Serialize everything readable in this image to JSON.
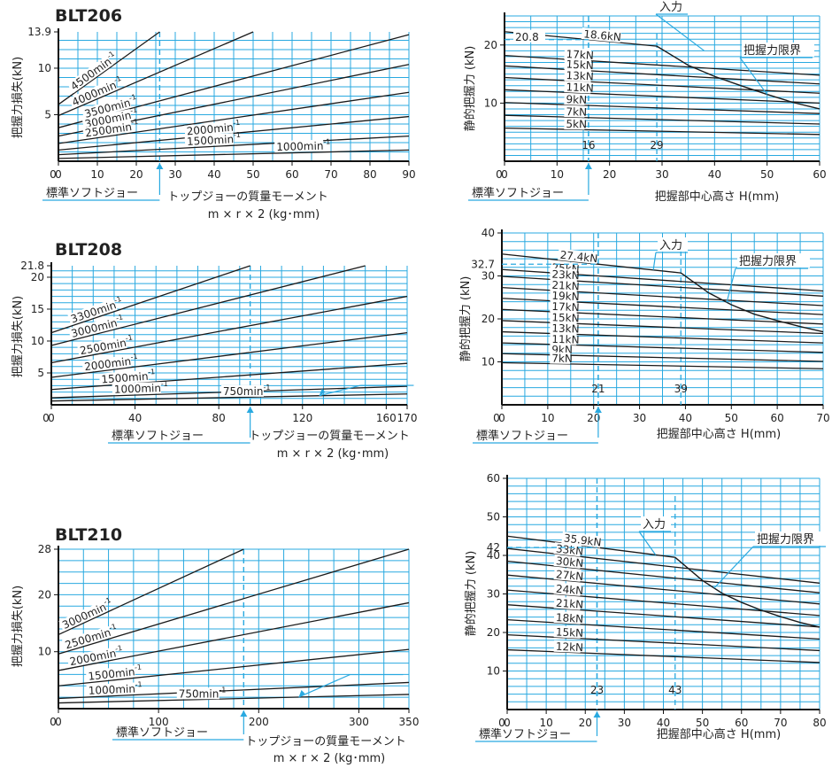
{
  "colors": {
    "grid": "#29a9e0",
    "curve": "#1a1a1a",
    "text": "#222222",
    "background": "#ffffff"
  },
  "chart_data": [
    {
      "type": "line",
      "id": "BLT206-loss",
      "title": "BLT206",
      "xlabel": "トップジョーの質量モーメント",
      "xlabel2": "m × r × 2 (kg･mm)",
      "ylabel": "把握力損失(kN)",
      "xlim": [
        0,
        90
      ],
      "ylim": [
        0,
        13.9
      ],
      "xticks": [
        0,
        10,
        20,
        30,
        40,
        50,
        60,
        70,
        80,
        90
      ],
      "yticks": [
        5,
        10,
        13.9
      ],
      "marker_x": 26,
      "marker_label": "標準ソフトジョー",
      "series": [
        {
          "name": "4500min-1",
          "x": [
            0,
            26
          ],
          "y": [
            6.1,
            13.9
          ]
        },
        {
          "name": "4000min-1",
          "x": [
            0,
            50
          ],
          "y": [
            4.9,
            13.9
          ]
        },
        {
          "name": "3500min-1",
          "x": [
            0,
            90
          ],
          "y": [
            3.6,
            13.6
          ]
        },
        {
          "name": "3000min-1",
          "x": [
            0,
            90
          ],
          "y": [
            2.7,
            10.4
          ]
        },
        {
          "name": "2500min-1",
          "x": [
            0,
            90
          ],
          "y": [
            1.9,
            7.4
          ]
        },
        {
          "name": "2000min-1",
          "x": [
            0,
            90
          ],
          "y": [
            1.2,
            4.8
          ]
        },
        {
          "name": "1500min-1",
          "x": [
            0,
            90
          ],
          "y": [
            0.7,
            2.7
          ]
        },
        {
          "name": "1000min-1",
          "x": [
            0,
            90
          ],
          "y": [
            0.3,
            1.2
          ]
        }
      ]
    },
    {
      "type": "line",
      "id": "BLT206-grip",
      "xlabel": "把握部中心高さ H(mm)",
      "ylabel": "静的把握力 (kN)",
      "xlim": [
        0,
        60
      ],
      "ylim": [
        0,
        25
      ],
      "xticks": [
        0,
        10,
        20,
        30,
        40,
        50,
        60
      ],
      "yticks": [
        10,
        20
      ],
      "marker_x": 16,
      "marker_label": "標準ソフトジョー",
      "refs": [
        {
          "x": 16,
          "label": "16"
        },
        {
          "x": 29,
          "label": "29"
        }
      ],
      "ref_value": "20.8",
      "input_label": "入力",
      "limit_label": "把握力限界",
      "limit_curve": {
        "x": [
          29,
          35,
          40,
          45,
          50,
          55,
          60
        ],
        "y": [
          19.8,
          16.5,
          14.6,
          13.0,
          11.5,
          10.1,
          9.0
        ]
      },
      "series": [
        {
          "name": "18.6kN",
          "x": [
            0,
            29
          ],
          "y": [
            22.3,
            19.8
          ]
        },
        {
          "name": "17kN",
          "x": [
            0,
            60
          ],
          "y": [
            18.2,
            14.8
          ]
        },
        {
          "name": "15kN",
          "x": [
            0,
            60
          ],
          "y": [
            16.4,
            13.3
          ]
        },
        {
          "name": "13kN",
          "x": [
            0,
            60
          ],
          "y": [
            14.4,
            11.7
          ]
        },
        {
          "name": "11kN",
          "x": [
            0,
            60
          ],
          "y": [
            12.3,
            10.0
          ]
        },
        {
          "name": "9kN",
          "x": [
            0,
            60
          ],
          "y": [
            10.1,
            8.2
          ]
        },
        {
          "name": "7kN",
          "x": [
            0,
            60
          ],
          "y": [
            7.9,
            6.4
          ]
        },
        {
          "name": "5kN",
          "x": [
            0,
            60
          ],
          "y": [
            5.7,
            4.6
          ]
        }
      ]
    },
    {
      "type": "line",
      "id": "BLT208-loss",
      "title": "BLT208",
      "xlabel": "トップジョーの質量モーメント",
      "xlabel2": "m × r × 2 (kg･mm)",
      "ylabel": "把握力損失(kN)",
      "xlim": [
        0,
        170
      ],
      "ylim": [
        0,
        21.8
      ],
      "xticks": [
        0,
        40,
        80,
        120,
        160,
        170
      ],
      "yticks": [
        5,
        10,
        15,
        20,
        21.8
      ],
      "marker_x": 95,
      "marker_label": "標準ソフトジョー",
      "series": [
        {
          "name": "3300min-1",
          "x": [
            0,
            95
          ],
          "y": [
            11.3,
            21.8
          ]
        },
        {
          "name": "3000min-1",
          "x": [
            0,
            150
          ],
          "y": [
            9.3,
            21.8
          ]
        },
        {
          "name": "2500min-1",
          "x": [
            0,
            170
          ],
          "y": [
            6.6,
            17.0
          ]
        },
        {
          "name": "2000min-1",
          "x": [
            0,
            170
          ],
          "y": [
            4.3,
            11.3
          ]
        },
        {
          "name": "1500min-1",
          "x": [
            0,
            170
          ],
          "y": [
            2.4,
            6.5
          ]
        },
        {
          "name": "1000min-1",
          "x": [
            0,
            170
          ],
          "y": [
            1.1,
            2.9
          ]
        },
        {
          "name": "750min-1",
          "x": [
            0,
            170
          ],
          "y": [
            0.6,
            1.7
          ]
        }
      ]
    },
    {
      "type": "line",
      "id": "BLT208-grip",
      "xlabel": "把握部中心高さ H(mm)",
      "ylabel": "静的把握力 (kN)",
      "xlim": [
        0,
        70
      ],
      "ylim": [
        0,
        40
      ],
      "xticks": [
        0,
        10,
        20,
        30,
        40,
        50,
        60,
        70
      ],
      "yticks": [
        10,
        20,
        30,
        40
      ],
      "marker_x": 21,
      "marker_label": "標準ソフトジョー",
      "refs": [
        {
          "x": 21,
          "label": "21"
        },
        {
          "x": 39,
          "label": "39"
        }
      ],
      "ref_value": "32.7",
      "input_label": "入力",
      "limit_label": "把握力限界",
      "limit_curve": {
        "x": [
          39,
          45,
          50,
          55,
          60,
          65,
          70
        ],
        "y": [
          30.7,
          26.1,
          23.3,
          21.1,
          19.6,
          18.2,
          17.0
        ]
      },
      "series": [
        {
          "name": "27.4kN",
          "x": [
            0,
            39
          ],
          "y": [
            35.1,
            30.7
          ]
        },
        {
          "name": "25kN",
          "x": [
            0,
            70
          ],
          "y": [
            31.5,
            26.5
          ]
        },
        {
          "name": "23kN",
          "x": [
            0,
            70
          ],
          "y": [
            29.9,
            25.3
          ]
        },
        {
          "name": "21kN",
          "x": [
            0,
            70
          ],
          "y": [
            27.3,
            23.1
          ]
        },
        {
          "name": "19kN",
          "x": [
            0,
            70
          ],
          "y": [
            24.8,
            21.0
          ]
        },
        {
          "name": "17kN",
          "x": [
            0,
            70
          ],
          "y": [
            22.2,
            18.8
          ]
        },
        {
          "name": "15kN",
          "x": [
            0,
            70
          ],
          "y": [
            19.6,
            16.6
          ]
        },
        {
          "name": "13kN",
          "x": [
            0,
            70
          ],
          "y": [
            17.0,
            14.4
          ]
        },
        {
          "name": "11kN",
          "x": [
            0,
            70
          ],
          "y": [
            14.4,
            12.2
          ]
        },
        {
          "name": "9kN",
          "x": [
            0,
            70
          ],
          "y": [
            11.9,
            10.1
          ]
        },
        {
          "name": "7kN",
          "x": [
            0,
            70
          ],
          "y": [
            9.8,
            8.4
          ]
        }
      ]
    },
    {
      "type": "line",
      "id": "BLT210-loss",
      "title": "BLT210",
      "xlabel": "トップジョーの質量モーメント",
      "xlabel2": "m × r × 2 (kg･mm)",
      "ylabel": "把握力損失(kN)",
      "xlim": [
        0,
        350
      ],
      "ylim": [
        0,
        28
      ],
      "xticks": [
        0,
        100,
        200,
        300,
        350
      ],
      "yticks": [
        10,
        20,
        28
      ],
      "marker_x": 185,
      "marker_label": "標準ソフトジョー",
      "series": [
        {
          "name": "3000min-1",
          "x": [
            0,
            185
          ],
          "y": [
            13.0,
            28.0
          ]
        },
        {
          "name": "2500min-1",
          "x": [
            0,
            350
          ],
          "y": [
            9.6,
            28.0
          ]
        },
        {
          "name": "2000min-1",
          "x": [
            0,
            350
          ],
          "y": [
            6.7,
            18.6
          ]
        },
        {
          "name": "1500min-1",
          "x": [
            0,
            350
          ],
          "y": [
            4.0,
            10.4
          ]
        },
        {
          "name": "1000min-1",
          "x": [
            0,
            350
          ],
          "y": [
            1.8,
            4.6
          ]
        },
        {
          "name": "750min-1",
          "x": [
            0,
            350
          ],
          "y": [
            1.0,
            2.5
          ]
        }
      ]
    },
    {
      "type": "line",
      "id": "BLT210-grip",
      "xlabel": "把握部中心高さ H(mm)",
      "ylabel": "静的把握力 (kN)",
      "xlim": [
        0,
        80
      ],
      "ylim": [
        0,
        60
      ],
      "xticks": [
        0,
        10,
        20,
        30,
        40,
        50,
        60,
        70,
        80
      ],
      "yticks": [
        10,
        20,
        30,
        40,
        50,
        60
      ],
      "marker_x": 23,
      "marker_label": "標準ソフトジョー",
      "refs": [
        {
          "x": 23,
          "label": "23"
        },
        {
          "x": 43,
          "label": "43"
        }
      ],
      "ref_value": "42",
      "input_label": "入力",
      "limit_label": "把握力限界",
      "limit_curve": {
        "x": [
          43,
          50,
          55,
          60,
          65,
          70,
          75,
          80
        ],
        "y": [
          39.5,
          33.5,
          30.2,
          27.8,
          25.8,
          24.1,
          22.6,
          21.4
        ]
      },
      "series": [
        {
          "name": "35.9kN",
          "x": [
            0,
            43
          ],
          "y": [
            45.0,
            39.5
          ]
        },
        {
          "name": "33kN",
          "x": [
            0,
            80
          ],
          "y": [
            41.8,
            32.8
          ]
        },
        {
          "name": "30kN",
          "x": [
            0,
            80
          ],
          "y": [
            38.5,
            30.3
          ]
        },
        {
          "name": "27kN",
          "x": [
            0,
            80
          ],
          "y": [
            34.9,
            27.4
          ]
        },
        {
          "name": "24kN",
          "x": [
            0,
            80
          ],
          "y": [
            31.0,
            24.4
          ]
        },
        {
          "name": "21kN",
          "x": [
            0,
            80
          ],
          "y": [
            27.2,
            21.4
          ]
        },
        {
          "name": "18kN",
          "x": [
            0,
            80
          ],
          "y": [
            23.3,
            18.3
          ]
        },
        {
          "name": "15kN",
          "x": [
            0,
            80
          ],
          "y": [
            19.4,
            15.3
          ]
        },
        {
          "name": "12kN",
          "x": [
            0,
            80
          ],
          "y": [
            15.5,
            12.2
          ]
        }
      ]
    }
  ]
}
